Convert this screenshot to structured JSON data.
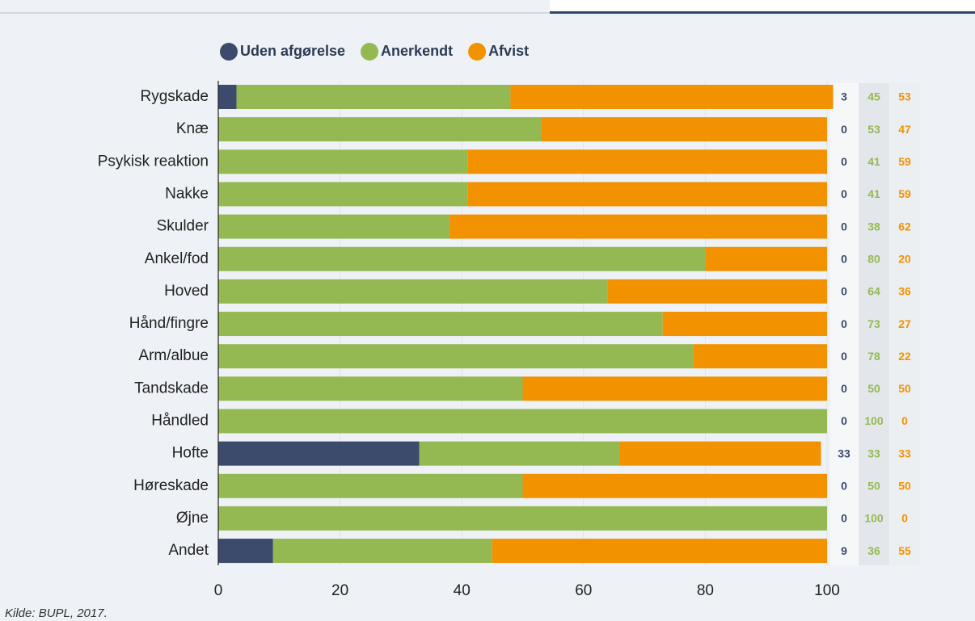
{
  "chart_data": {
    "type": "bar",
    "orientation": "horizontal",
    "stacked": true,
    "categories": [
      "Rygskade",
      "Knæ",
      "Psykisk reaktion",
      "Nakke",
      "Skulder",
      "Ankel/fod",
      "Hoved",
      "Hånd/fingre",
      "Arm/albue",
      "Tandskade",
      "Håndled",
      "Hofte",
      "Høreskade",
      "Øjne",
      "Andet"
    ],
    "series": [
      {
        "name": "Uden afgørelse",
        "color": "#3c4a6b",
        "values": [
          3,
          0,
          0,
          0,
          0,
          0,
          0,
          0,
          0,
          0,
          0,
          33,
          0,
          0,
          9
        ]
      },
      {
        "name": "Anerkendt",
        "color": "#95b952",
        "values": [
          45,
          53,
          41,
          41,
          38,
          80,
          64,
          73,
          78,
          50,
          100,
          33,
          50,
          100,
          36
        ]
      },
      {
        "name": "Afvist",
        "color": "#f29200",
        "values": [
          53,
          47,
          59,
          59,
          62,
          20,
          36,
          27,
          22,
          50,
          0,
          33,
          50,
          0,
          55
        ]
      }
    ],
    "xlim": [
      0,
      100
    ],
    "xticks": [
      0,
      20,
      40,
      60,
      80,
      100
    ],
    "grid": true,
    "legend": "top",
    "source": "Kilde: BUPL, 2017."
  }
}
